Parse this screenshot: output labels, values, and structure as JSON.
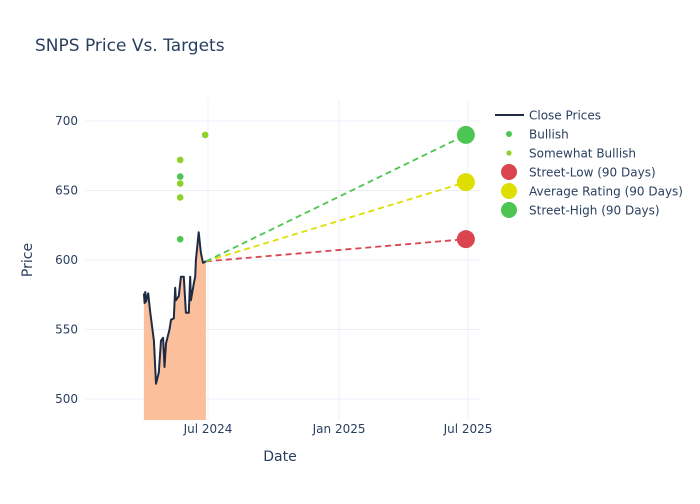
{
  "chart_data": {
    "type": "line",
    "title": "SNPS Price Vs. Targets",
    "xlabel": "Date",
    "ylabel": "Price",
    "ylim": [
      485,
      715
    ],
    "xlim": [
      "2024-01-05",
      "2025-07-20"
    ],
    "x_ticks": [
      {
        "date": "2024-07-01",
        "label": "Jul 2024"
      },
      {
        "date": "2025-01-01",
        "label": "Jan 2025"
      },
      {
        "date": "2025-07-01",
        "label": "Jul 2025"
      }
    ],
    "y_ticks": [
      500,
      550,
      600,
      650,
      700
    ],
    "grid": true,
    "legend_position": "right",
    "close_prices": {
      "name": "Close Prices",
      "color": "#1f2a44",
      "fill_color": "#fbbf9b",
      "points": [
        [
          "2024-04-02",
          576
        ],
        [
          "2024-04-03",
          569
        ],
        [
          "2024-04-04",
          577
        ],
        [
          "2024-04-05",
          570
        ],
        [
          "2024-04-08",
          576
        ],
        [
          "2024-04-11",
          562
        ],
        [
          "2024-04-16",
          542
        ],
        [
          "2024-04-19",
          511
        ],
        [
          "2024-04-23",
          519
        ],
        [
          "2024-04-26",
          542
        ],
        [
          "2024-04-29",
          544
        ],
        [
          "2024-05-01",
          523
        ],
        [
          "2024-05-03",
          540
        ],
        [
          "2024-05-08",
          550
        ],
        [
          "2024-05-10",
          557
        ],
        [
          "2024-05-14",
          558
        ],
        [
          "2024-05-16",
          580
        ],
        [
          "2024-05-17",
          571
        ],
        [
          "2024-05-21",
          574
        ],
        [
          "2024-05-24",
          588
        ],
        [
          "2024-05-28",
          588
        ],
        [
          "2024-05-31",
          562
        ],
        [
          "2024-06-04",
          562
        ],
        [
          "2024-06-06",
          588
        ],
        [
          "2024-06-07",
          571
        ],
        [
          "2024-06-11",
          583
        ],
        [
          "2024-06-13",
          588
        ],
        [
          "2024-06-14",
          600
        ],
        [
          "2024-06-18",
          620
        ],
        [
          "2024-06-21",
          605
        ],
        [
          "2024-06-24",
          598
        ],
        [
          "2024-06-28",
          599
        ]
      ]
    },
    "analyst_ratings": [
      {
        "name": "Bullish",
        "color": "#4cc552",
        "points": [
          [
            "2024-05-23",
            660
          ],
          [
            "2024-05-23",
            615
          ]
        ]
      },
      {
        "name": "Somewhat Bullish",
        "color": "#8fd129",
        "points": [
          [
            "2024-05-23",
            672
          ],
          [
            "2024-05-23",
            655
          ],
          [
            "2024-05-23",
            645
          ],
          [
            "2024-06-27",
            690
          ]
        ]
      }
    ],
    "targets": [
      {
        "name": "Street-Low (90 Days)",
        "color": "#d9444f",
        "date": "2025-06-28",
        "value": 615
      },
      {
        "name": "Average Rating (90 Days)",
        "color": "#dede00",
        "date": "2025-06-28",
        "value": 656
      },
      {
        "name": "Street-High (90 Days)",
        "color": "#4cc552",
        "date": "2025-06-28",
        "value": 690
      }
    ]
  }
}
